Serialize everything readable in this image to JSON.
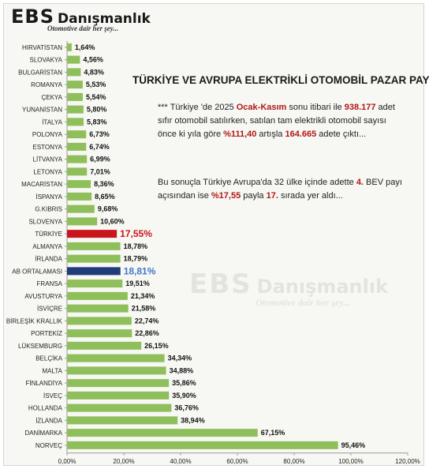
{
  "logo": {
    "brand": "EBS",
    "firm": "Danışmanlık",
    "slogan": "Otomotive dair her şey..."
  },
  "watermark": {
    "brand": "EBS",
    "firm": "Danışmanlık",
    "slogan": "Otomotive dair her şey..."
  },
  "title": "TÜRKİYE VE AVRUPA ELEKTRİKLİ OTOMOBİL PAZAR PAYI",
  "paragraph1": {
    "t1": "*** Türkiye 'de 2025 ",
    "h1": "Ocak-Kasım",
    "t2": " sonu itibari ile ",
    "h2": "938.177",
    "t3": " adet sıfır otomobil satılırken, satılan tam elektrikli otomobil sayısı önce ki yıla göre ",
    "h3": "%111,40",
    "t4": " artışla ",
    "h4": "164.665",
    "t5": " adete çıktı..."
  },
  "paragraph2": {
    "t1": "Bu sonuçla Türkiye Avrupa'da 32 ülke içinde adette ",
    "h1": "4.",
    "t2": " BEV payı açısından ise ",
    "h2": "%17,55",
    "t3": " payla ",
    "h3": "17.",
    "t4": " sırada yer aldı..."
  },
  "colors": {
    "default_bar": "#8fbf5a",
    "turkey_bar": "#c8161c",
    "eu_bar": "#1f3d7a",
    "turkey_label": "#c8161c",
    "eu_label": "#3f78c8",
    "highlight_text": "#b01818"
  },
  "chart_data": {
    "type": "bar",
    "orientation": "horizontal",
    "categories": [
      "HIRVATİSTAN",
      "SLOVAKYA",
      "BULGARİSTAN",
      "ROMANYA",
      "ÇEKYA",
      "YUNANİSTAN",
      "İTALYA",
      "POLONYA",
      "ESTONYA",
      "LİTVANYA",
      "LETONYA",
      "MACARİSTAN",
      "İSPANYA",
      "G.KIBRIS",
      "SLOVENYA",
      "TÜRKİYE",
      "ALMANYA",
      "İRLANDA",
      "AB ORTALAMASI",
      "FRANSA",
      "AVUSTURYA",
      "İSVİÇRE",
      "BİRLEŞİK KRALLIK",
      "PORTEKİZ",
      "LÜKSEMBURG",
      "BELÇİKA",
      "MALTA",
      "FİNLANDİYA",
      "İSVEÇ",
      "HOLLANDA",
      "İZLANDA",
      "DANİMARKA",
      "NORVEÇ"
    ],
    "values": [
      1.64,
      4.56,
      4.83,
      5.53,
      5.54,
      5.8,
      5.83,
      6.73,
      6.74,
      6.99,
      7.01,
      8.36,
      8.65,
      9.68,
      10.6,
      17.55,
      18.78,
      18.79,
      18.81,
      19.51,
      21.34,
      21.58,
      22.74,
      22.86,
      26.15,
      34.34,
      34.88,
      35.86,
      35.9,
      36.76,
      38.94,
      67.15,
      95.46
    ],
    "value_labels": [
      "1,64%",
      "4,56%",
      "4,83%",
      "5,53%",
      "5,54%",
      "5,80%",
      "5,83%",
      "6,73%",
      "6,74%",
      "6,99%",
      "7,01%",
      "8,36%",
      "8,65%",
      "9,68%",
      "10,60%",
      "17,55%",
      "18,78%",
      "18,79%",
      "18,81%",
      "19,51%",
      "21,34%",
      "21,58%",
      "22,74%",
      "22,86%",
      "26,15%",
      "34,34%",
      "34,88%",
      "35,86%",
      "35,90%",
      "36,76%",
      "38,94%",
      "67,15%",
      "95,46%"
    ],
    "highlight": {
      "TÜRKİYE": "turkey",
      "AB ORTALAMASI": "eu"
    },
    "xlim": [
      0,
      120
    ],
    "xticks": [
      "0,00%",
      "20,00%",
      "40,00%",
      "60,00%",
      "80,00%",
      "100,00%",
      "120,00%"
    ],
    "grid": false
  }
}
